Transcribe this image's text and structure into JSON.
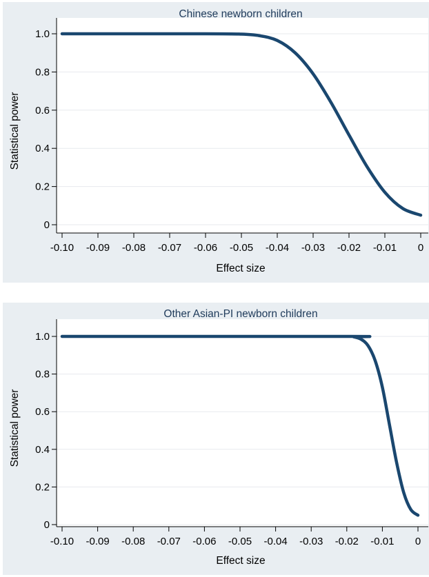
{
  "chart_data": [
    {
      "type": "line",
      "title": "Chinese newborn children",
      "xlabel": "Effect size",
      "ylabel": "Statistical power",
      "xlim": [
        -0.1,
        0
      ],
      "ylim": [
        0,
        1.0
      ],
      "x_ticks": [
        -0.1,
        -0.09,
        -0.08,
        -0.07,
        -0.06,
        -0.05,
        -0.04,
        -0.03,
        -0.02,
        -0.01,
        0
      ],
      "x_tick_labels": [
        "-0.10",
        "-0.09",
        "-0.08",
        "-0.07",
        "-0.06",
        "-0.05",
        "-0.04",
        "-0.03",
        "-0.02",
        "-0.01",
        "0"
      ],
      "y_ticks": [
        0,
        0.2,
        0.4,
        0.6,
        0.8,
        1.0
      ],
      "y_tick_labels": [
        "0",
        "0.2",
        "0.4",
        "0.6",
        "0.8",
        "1.0"
      ],
      "grid": true,
      "color": "#1a476f",
      "x": [
        -0.1,
        -0.06,
        -0.05,
        -0.045,
        -0.04,
        -0.035,
        -0.03,
        -0.025,
        -0.02,
        -0.015,
        -0.01,
        -0.005,
        0
      ],
      "y": [
        1.0,
        1.0,
        0.998,
        0.99,
        0.965,
        0.9,
        0.79,
        0.64,
        0.47,
        0.305,
        0.17,
        0.085,
        0.05
      ]
    },
    {
      "type": "line",
      "title": "Other Asian-PI newborn children",
      "xlabel": "Effect size",
      "ylabel": "Statistical power",
      "xlim": [
        -0.1,
        0
      ],
      "ylim": [
        0,
        1.0
      ],
      "x_ticks": [
        -0.1,
        -0.09,
        -0.08,
        -0.07,
        -0.06,
        -0.05,
        -0.04,
        -0.03,
        -0.02,
        -0.01,
        0
      ],
      "x_tick_labels": [
        "-0.10",
        "-0.09",
        "-0.08",
        "-0.07",
        "-0.06",
        "-0.05",
        "-0.04",
        "-0.03",
        "-0.02",
        "-0.01",
        "0"
      ],
      "y_ticks": [
        0,
        0.2,
        0.4,
        0.6,
        0.8,
        1.0
      ],
      "y_tick_labels": [
        "0",
        "0.2",
        "0.4",
        "0.6",
        "0.8",
        "1.0"
      ],
      "grid": true,
      "color": "#1a476f",
      "x": [
        -0.1,
        -0.02,
        -0.018,
        -0.016,
        -0.014,
        -0.012,
        -0.01,
        -0.008,
        -0.006,
        -0.004,
        -0.002,
        0
      ],
      "y": [
        1.0,
        1.0,
        0.997,
        0.985,
        0.95,
        0.87,
        0.73,
        0.53,
        0.33,
        0.17,
        0.08,
        0.05
      ]
    }
  ]
}
